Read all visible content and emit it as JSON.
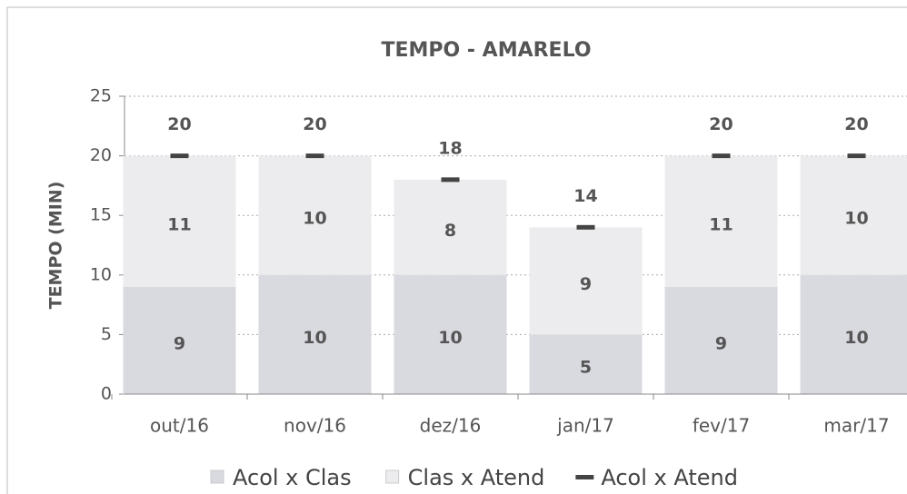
{
  "chart_data": {
    "type": "stacked-bar-line",
    "title": "TEMPO - AMARELO",
    "y_label": "TEMPO (MIN)",
    "categories": [
      "out/16",
      "nov/16",
      "dez/16",
      "jan/17",
      "fev/17",
      "mar/17"
    ],
    "series": [
      {
        "name": "Acol x Clas",
        "color": "#d9d9e0",
        "kind": "bar",
        "values": [
          9,
          10,
          10,
          5,
          9,
          10
        ]
      },
      {
        "name": "Clas x Atend",
        "color": "#ececee",
        "kind": "bar",
        "values": [
          11,
          10,
          8,
          9,
          11,
          10
        ]
      },
      {
        "name": "Acol x Atend",
        "color": "#444444",
        "kind": "marker",
        "values": [
          20,
          20,
          18,
          14,
          20,
          20
        ]
      }
    ],
    "ylim": [
      0,
      25
    ],
    "yticks": [
      0,
      5,
      10,
      15,
      20,
      25
    ],
    "grid": true,
    "legend": "bottom"
  }
}
